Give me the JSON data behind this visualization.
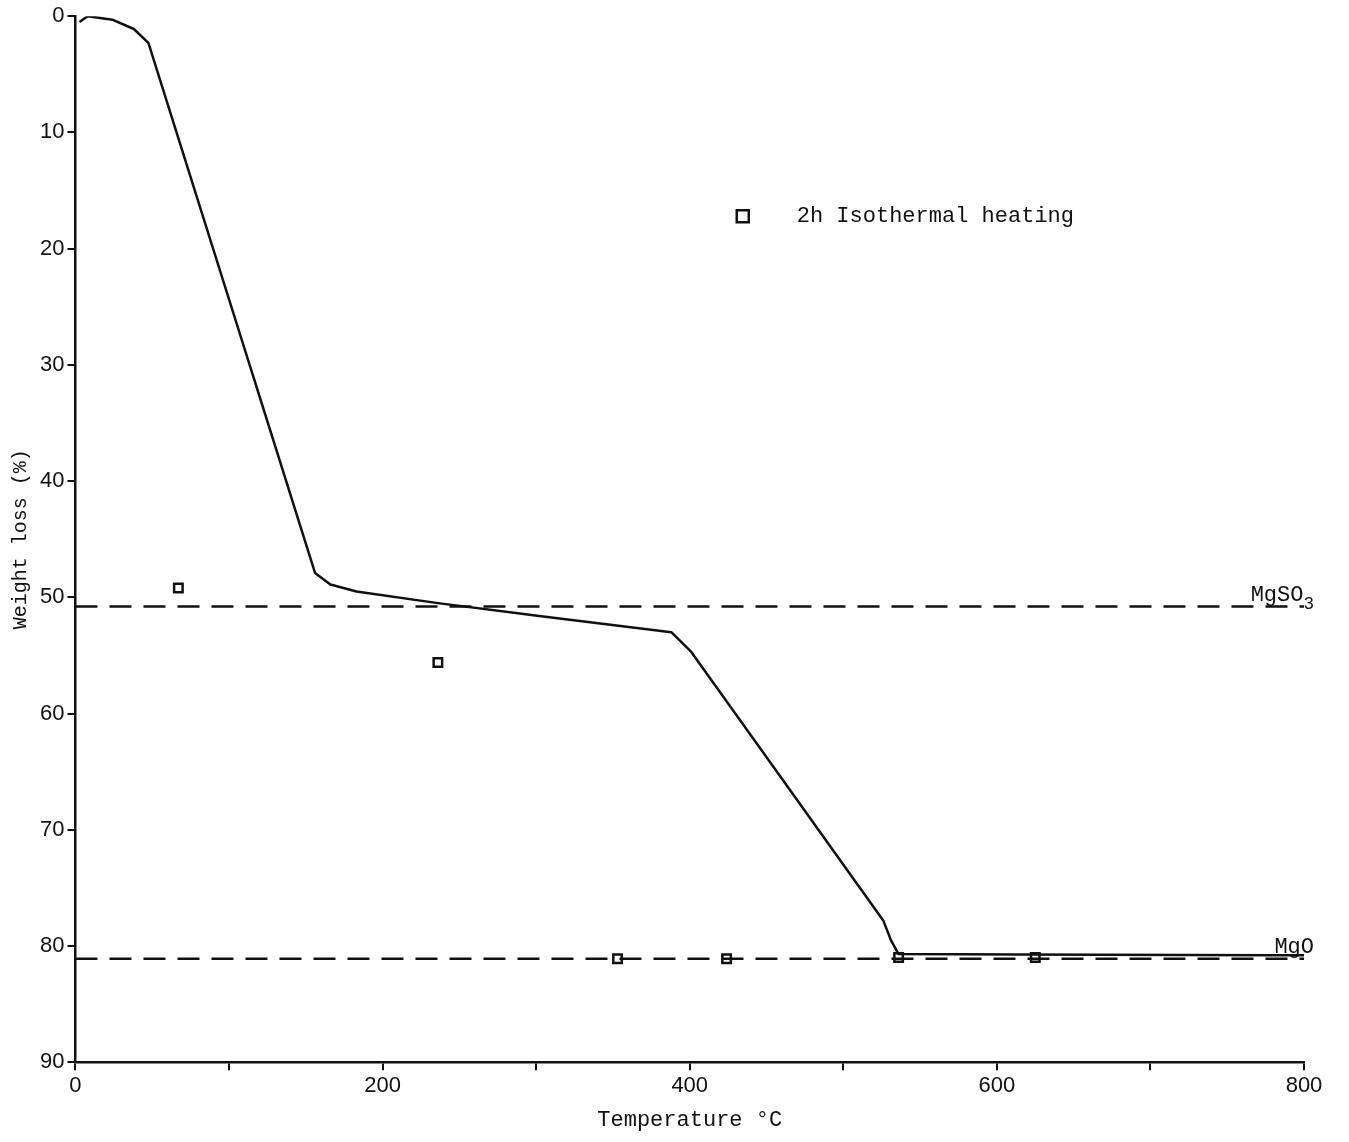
{
  "chart_data": {
    "type": "line",
    "xlabel": "Temperature °C",
    "ylabel": "Weight loss (%)",
    "xlim": [
      0,
      800
    ],
    "ylim": [
      90,
      0
    ],
    "xticks": [
      0,
      {
        "value": 100,
        "label": null
      },
      200,
      {
        "value": 300,
        "label": null
      },
      400,
      {
        "value": 500,
        "label": null
      },
      600,
      {
        "value": 700,
        "label": null
      },
      800
    ],
    "yticks": [
      0,
      10,
      20,
      30,
      40,
      50,
      60,
      70,
      80,
      90
    ],
    "grid": false,
    "legend": "top right",
    "series": [
      {
        "color": "#111111",
        "marker": "none",
        "line_style": "solid",
        "x": [
          2.6,
          8,
          24,
          38,
          47.5,
          156,
          166,
          183,
          236,
          302,
          388,
          401,
          526,
          531,
          536,
          800
        ],
        "values": [
          0.5,
          0,
          0.3,
          1.1,
          2.3,
          47.9,
          48.9,
          49.5,
          50.5,
          51.6,
          53,
          54.7,
          77.8,
          79.5,
          80.7,
          80.8
        ]
      },
      {
        "type": "scatter",
        "name": "2h Isothermal heating",
        "color": "#111111",
        "marker": "square",
        "x": [
          67,
          236,
          353,
          424,
          536,
          625
        ],
        "values": [
          49.2,
          55.6,
          81.1,
          81.1,
          81,
          81
        ]
      }
    ],
    "ref_lines": [
      {
        "axis": "y",
        "value": 50.8,
        "label": "MgSO$_{3}$",
        "line_style": "dashed",
        "color": "#111111"
      },
      {
        "axis": "y",
        "value": 81.1,
        "label": "MgO",
        "line_style": "dashed",
        "color": "#111111"
      }
    ]
  }
}
